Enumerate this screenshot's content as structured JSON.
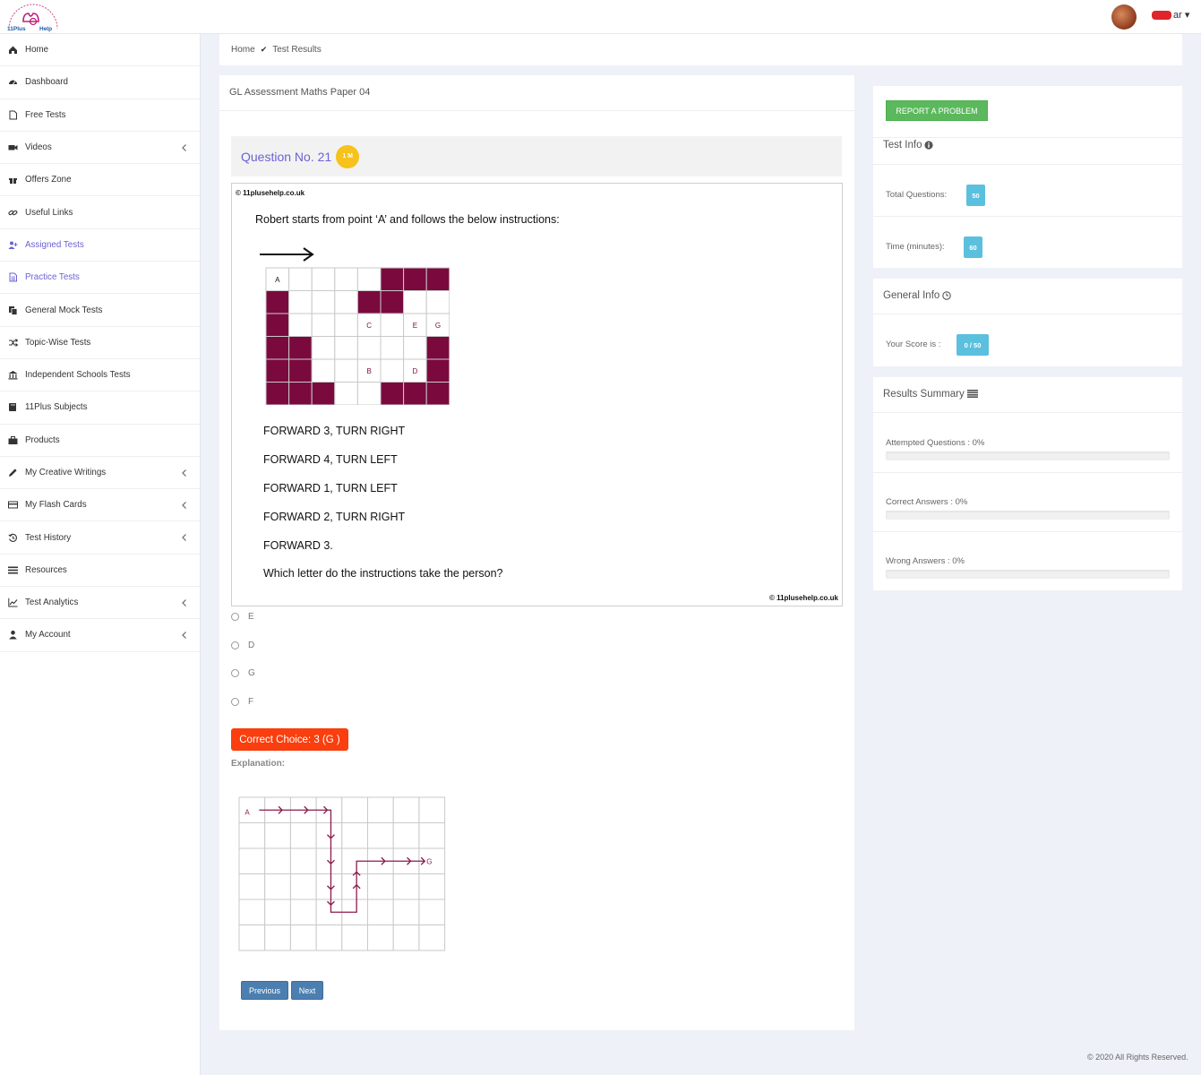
{
  "brand": {
    "logo_top": "11Plus",
    "logo_side": "Help"
  },
  "user": {
    "name_suffix": "ar"
  },
  "sidebar": {
    "items": [
      {
        "label": "Home",
        "icon": "home-icon",
        "chevron": false,
        "highlight": false
      },
      {
        "label": "Dashboard",
        "icon": "dashboard-icon",
        "chevron": false,
        "highlight": false
      },
      {
        "label": "Free Tests",
        "icon": "file-icon",
        "chevron": false,
        "highlight": false
      },
      {
        "label": "Videos",
        "icon": "video-icon",
        "chevron": true,
        "highlight": false
      },
      {
        "label": "Offers Zone",
        "icon": "gift-icon",
        "chevron": false,
        "highlight": false
      },
      {
        "label": "Useful Links",
        "icon": "link-icon",
        "chevron": false,
        "highlight": false
      },
      {
        "label": "Assigned Tests",
        "icon": "user-plus-icon",
        "chevron": false,
        "highlight": true
      },
      {
        "label": "Practice Tests",
        "icon": "file-text-icon",
        "chevron": false,
        "highlight": true
      },
      {
        "label": "General Mock Tests",
        "icon": "copy-icon",
        "chevron": false,
        "highlight": false
      },
      {
        "label": "Topic-Wise Tests",
        "icon": "shuffle-icon",
        "chevron": false,
        "highlight": false
      },
      {
        "label": "Independent Schools Tests",
        "icon": "institution-icon",
        "chevron": false,
        "highlight": false
      },
      {
        "label": "11Plus Subjects",
        "icon": "book-icon",
        "chevron": false,
        "highlight": false
      },
      {
        "label": "Products",
        "icon": "briefcase-icon",
        "chevron": false,
        "highlight": false
      },
      {
        "label": "My Creative Writings",
        "icon": "pencil-icon",
        "chevron": true,
        "highlight": false
      },
      {
        "label": "My Flash Cards",
        "icon": "card-icon",
        "chevron": true,
        "highlight": false
      },
      {
        "label": "Test History",
        "icon": "history-icon",
        "chevron": true,
        "highlight": false
      },
      {
        "label": "Resources",
        "icon": "list-icon",
        "chevron": false,
        "highlight": false
      },
      {
        "label": "Test Analytics",
        "icon": "line-chart-icon",
        "chevron": true,
        "highlight": false
      },
      {
        "label": "My Account",
        "icon": "user-icon",
        "chevron": true,
        "highlight": false
      }
    ]
  },
  "breadcrumb": {
    "home": "Home",
    "current": "Test Results"
  },
  "paper": {
    "title": "GL Assessment Maths Paper 04"
  },
  "question": {
    "title": "Question No. 21",
    "marks": "1 M",
    "copyright": "© 11plusehelp.co.uk",
    "intro": "Robert starts from point ‘A’ and follows the below instructions:",
    "instructions": [
      "FORWARD 3, TURN RIGHT",
      "FORWARD 4, TURN LEFT",
      "FORWARD 1, TURN LEFT",
      "FORWARD 2, TURN RIGHT",
      "FORWARD 3."
    ],
    "prompt": "Which letter do the instructions take the person?",
    "grid_labels": {
      "a": "A",
      "b": "B",
      "c": "C",
      "d": "D",
      "e": "E",
      "g": "G"
    },
    "grid_colors": {
      "fill": "#7a0a3e",
      "line": "#c9c9c9"
    }
  },
  "options": [
    "E",
    "D",
    "G",
    "F"
  ],
  "answer": {
    "correct": "Correct Choice: 3 (G )",
    "explanation_label": "Explanation:",
    "diagram_start": "A",
    "diagram_end": "G"
  },
  "buttons": {
    "previous": "Previous",
    "next": "Next"
  },
  "right": {
    "report": "REPORT A PROBLEM",
    "test_info": {
      "title": "Test Info",
      "total_label": "Total Questions:",
      "total": "50",
      "time_label": "Time (minutes):",
      "time": "60"
    },
    "general_info": {
      "title": "General Info",
      "score_label": "Your Score is :",
      "score": "0 / 50"
    },
    "summary": {
      "title": "Results Summary",
      "attempted": "Attempted Questions : 0%",
      "correct": "Correct Answers : 0%",
      "wrong": "Wrong Answers : 0%",
      "attempted_pct": 0,
      "correct_pct": 0,
      "wrong_pct": 0
    }
  },
  "footer": "© 2020 All Rights Reserved."
}
